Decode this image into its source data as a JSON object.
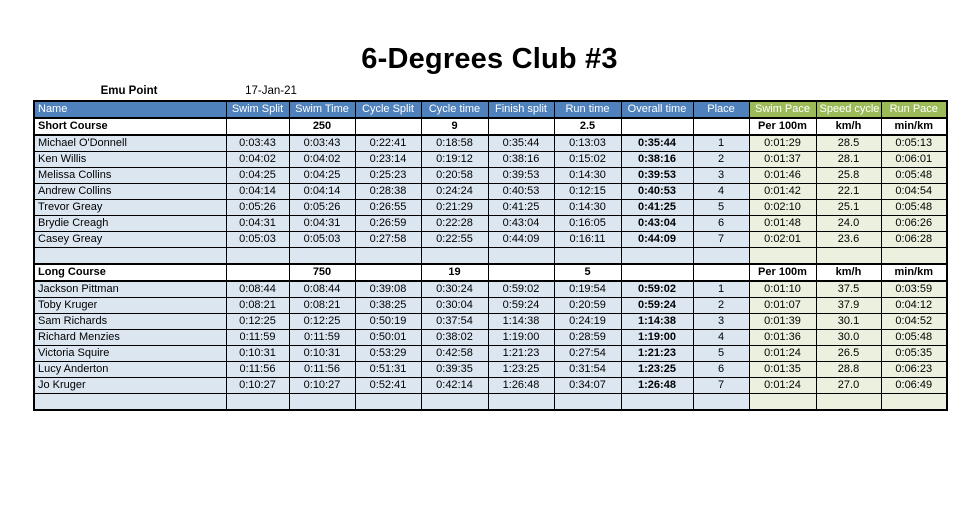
{
  "page": {
    "title": "6-Degrees Club #3"
  },
  "meta": {
    "location": "Emu Point",
    "date": "17-Jan-21"
  },
  "colors": {
    "header_blue": "#4f81bd",
    "header_green": "#9bbb59",
    "row_blue_tint": "#dce6f1",
    "row_green_tint": "#ebf1de",
    "header_text": "#ffffff"
  },
  "table": {
    "columns": [
      "Name",
      "Swim Split",
      "Swim Time",
      "Cycle Split",
      "Cycle time",
      "Finish split",
      "Run time",
      "Overall time",
      "Place",
      "Swim Pace",
      "Speed cycle",
      "Run Pace"
    ],
    "blue_column_count": 9,
    "sections": [
      {
        "label": "Short Course",
        "distances": {
          "swim": "250",
          "cycle": "9",
          "run": "2.5"
        },
        "pace_units": [
          "Per 100m",
          "km/h",
          "min/km"
        ],
        "rows": [
          [
            "Michael O'Donnell",
            "0:03:43",
            "0:03:43",
            "0:22:41",
            "0:18:58",
            "0:35:44",
            "0:13:03",
            "0:35:44",
            "1",
            "0:01:29",
            "28.5",
            "0:05:13"
          ],
          [
            "Ken Willis",
            "0:04:02",
            "0:04:02",
            "0:23:14",
            "0:19:12",
            "0:38:16",
            "0:15:02",
            "0:38:16",
            "2",
            "0:01:37",
            "28.1",
            "0:06:01"
          ],
          [
            "Melissa Collins",
            "0:04:25",
            "0:04:25",
            "0:25:23",
            "0:20:58",
            "0:39:53",
            "0:14:30",
            "0:39:53",
            "3",
            "0:01:46",
            "25.8",
            "0:05:48"
          ],
          [
            "Andrew Collins",
            "0:04:14",
            "0:04:14",
            "0:28:38",
            "0:24:24",
            "0:40:53",
            "0:12:15",
            "0:40:53",
            "4",
            "0:01:42",
            "22.1",
            "0:04:54"
          ],
          [
            "Trevor Greay",
            "0:05:26",
            "0:05:26",
            "0:26:55",
            "0:21:29",
            "0:41:25",
            "0:14:30",
            "0:41:25",
            "5",
            "0:02:10",
            "25.1",
            "0:05:48"
          ],
          [
            "Brydie Creagh",
            "0:04:31",
            "0:04:31",
            "0:26:59",
            "0:22:28",
            "0:43:04",
            "0:16:05",
            "0:43:04",
            "6",
            "0:01:48",
            "24.0",
            "0:06:26"
          ],
          [
            "Casey Greay",
            "0:05:03",
            "0:05:03",
            "0:27:58",
            "0:22:55",
            "0:44:09",
            "0:16:11",
            "0:44:09",
            "7",
            "0:02:01",
            "23.6",
            "0:06:28"
          ]
        ]
      },
      {
        "label": "Long Course",
        "distances": {
          "swim": "750",
          "cycle": "19",
          "run": "5"
        },
        "pace_units": [
          "Per 100m",
          "km/h",
          "min/km"
        ],
        "rows": [
          [
            "Jackson Pittman",
            "0:08:44",
            "0:08:44",
            "0:39:08",
            "0:30:24",
            "0:59:02",
            "0:19:54",
            "0:59:02",
            "1",
            "0:01:10",
            "37.5",
            "0:03:59"
          ],
          [
            "Toby Kruger",
            "0:08:21",
            "0:08:21",
            "0:38:25",
            "0:30:04",
            "0:59:24",
            "0:20:59",
            "0:59:24",
            "2",
            "0:01:07",
            "37.9",
            "0:04:12"
          ],
          [
            "Sam Richards",
            "0:12:25",
            "0:12:25",
            "0:50:19",
            "0:37:54",
            "1:14:38",
            "0:24:19",
            "1:14:38",
            "3",
            "0:01:39",
            "30.1",
            "0:04:52"
          ],
          [
            "Richard Menzies",
            "0:11:59",
            "0:11:59",
            "0:50:01",
            "0:38:02",
            "1:19:00",
            "0:28:59",
            "1:19:00",
            "4",
            "0:01:36",
            "30.0",
            "0:05:48"
          ],
          [
            "Victoria Squire",
            "0:10:31",
            "0:10:31",
            "0:53:29",
            "0:42:58",
            "1:21:23",
            "0:27:54",
            "1:21:23",
            "5",
            "0:01:24",
            "26.5",
            "0:05:35"
          ],
          [
            "Lucy Anderton",
            "0:11:56",
            "0:11:56",
            "0:51:31",
            "0:39:35",
            "1:23:25",
            "0:31:54",
            "1:23:25",
            "6",
            "0:01:35",
            "28.8",
            "0:06:23"
          ],
          [
            "Jo Kruger",
            "0:10:27",
            "0:10:27",
            "0:52:41",
            "0:42:14",
            "1:26:48",
            "0:34:07",
            "1:26:48",
            "7",
            "0:01:24",
            "27.0",
            "0:06:49"
          ]
        ]
      }
    ]
  }
}
